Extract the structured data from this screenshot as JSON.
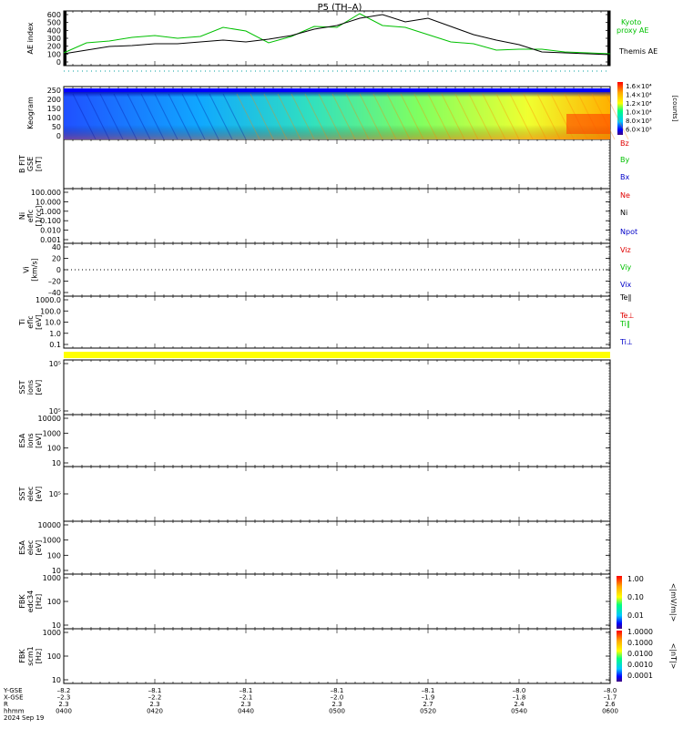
{
  "title": "P5  (TH–A)",
  "colors": {
    "kyoto": "#00c000",
    "themis": "#000000",
    "red": "#e00000",
    "green": "#00c000",
    "blue": "#0000c8",
    "highlight": "#ffff00"
  },
  "chart_data": [
    {
      "type": "line",
      "panel": "ae",
      "ylabel": "AE index",
      "ylim": [
        0,
        600
      ],
      "yticks": [
        "600",
        "500",
        "400",
        "300",
        "200",
        "100",
        "0"
      ],
      "x": [
        0,
        5,
        10,
        15,
        20,
        25,
        30,
        35,
        40,
        45,
        50,
        55,
        60,
        65,
        70,
        75,
        80,
        85,
        90,
        95,
        100,
        105,
        110,
        115,
        120
      ],
      "series": [
        {
          "name": "Kyoto\nproxy AE",
          "color": "#00c000",
          "values": [
            140,
            250,
            270,
            310,
            330,
            300,
            320,
            420,
            380,
            250,
            320,
            430,
            420,
            570,
            440,
            420,
            340,
            260,
            240,
            170,
            180,
            180,
            150,
            140,
            130
          ]
        },
        {
          "name": "Themis AE",
          "color": "#000000",
          "values": [
            130,
            170,
            210,
            220,
            240,
            240,
            260,
            280,
            260,
            290,
            330,
            400,
            440,
            520,
            560,
            480,
            520,
            430,
            340,
            280,
            230,
            150,
            140,
            130,
            120
          ]
        }
      ]
    },
    {
      "type": "heatmap",
      "panel": "keogram",
      "ylabel": "Keogram",
      "ylim": [
        0,
        250
      ],
      "yticks": [
        "250",
        "200",
        "150",
        "100",
        "50",
        "0"
      ],
      "colorbar": {
        "ticks": [
          "1.6×10⁴",
          "1.4×10⁴",
          "1.2×10⁴",
          "1.0×10⁴",
          "8.0×10³",
          "6.0×10³"
        ],
        "label": "[counts]"
      }
    },
    {
      "type": "line",
      "panel": "bfit",
      "ylabel": "B FIT\nGSE\n[nT]",
      "legend": [
        "Bz",
        "By",
        "Bx"
      ]
    },
    {
      "type": "line",
      "panel": "ni",
      "ylabel": "Ni\neflc\n[1/cc]",
      "ylim": [
        0.001,
        100
      ],
      "yticks": [
        "100.000",
        "10.000",
        "1.000",
        "0.100",
        "0.010",
        "0.001"
      ],
      "legend": [
        "Ne",
        "Ni",
        "Npot"
      ]
    },
    {
      "type": "line",
      "panel": "vi",
      "ylabel": "Vi\n[km/s]",
      "ylim": [
        -50,
        50
      ],
      "yticks": [
        "40",
        "20",
        "0",
        "–20",
        "–40"
      ],
      "legend": [
        "Viz",
        "Viy",
        "Vix"
      ]
    },
    {
      "type": "line",
      "panel": "ti",
      "ylabel": "Ti\neflc\n[eV]",
      "ylim": [
        0.1,
        1000
      ],
      "yticks": [
        "1000.0",
        "100.0",
        "10.0",
        "1.0",
        "0.1"
      ],
      "legend": [
        "Te∥",
        "Te⊥",
        "Ti∥",
        "Ti⊥"
      ]
    },
    {
      "type": "heatmap",
      "panel": "sst1",
      "ylabel": "SST\nions\n[eV]",
      "yticks": [
        "10⁵",
        "10⁵"
      ]
    },
    {
      "type": "heatmap",
      "panel": "esa1",
      "ylabel": "ESA\nions\n[eV]",
      "yticks": [
        "10000",
        "1000",
        "100",
        "10"
      ]
    },
    {
      "type": "heatmap",
      "panel": "sst2",
      "ylabel": "SST\nelec\n[eV]",
      "yticks": [
        "10⁵"
      ]
    },
    {
      "type": "heatmap",
      "panel": "esa2",
      "ylabel": "ESA\nelec\n[eV]",
      "yticks": [
        "10000",
        "1000",
        "100",
        "10"
      ]
    },
    {
      "type": "heatmap",
      "panel": "fbk1",
      "ylabel": "FBK\nedc34\n[Hz]",
      "yticks": [
        "1000",
        "100",
        "10"
      ],
      "colorbar": {
        "ticks": [
          "1.00",
          "0.10",
          "0.01"
        ],
        "label": "<|mV/m|>"
      }
    },
    {
      "type": "heatmap",
      "panel": "fbk2",
      "ylabel": "FBK\nscm1\n[Hz]",
      "yticks": [
        "1000",
        "100",
        "10"
      ],
      "colorbar": {
        "ticks": [
          "1.0000",
          "0.1000",
          "0.0100",
          "0.0010",
          "0.0001"
        ],
        "label": "<|nT|>"
      }
    }
  ],
  "rowlabels": [
    "Y-GSE",
    "X-GSE",
    "R",
    "hhmm",
    "2024 Sep 19"
  ],
  "xticks": [
    {
      "rows": [
        "–8.2",
        "–2.3",
        "2.3",
        "0400"
      ]
    },
    {
      "rows": [
        "–8.1",
        "–2.2",
        "2.3",
        "0420"
      ]
    },
    {
      "rows": [
        "–8.1",
        "–2.1",
        "2.3",
        "0440"
      ]
    },
    {
      "rows": [
        "–8.1",
        "–2.0",
        "2.3",
        "0500"
      ]
    },
    {
      "rows": [
        "–8.1",
        "–1.9",
        "2.7",
        "0520"
      ]
    },
    {
      "rows": [
        "–8.0",
        "–1.8",
        "2.4",
        "0540"
      ]
    },
    {
      "rows": [
        "–8.0",
        "–1.7",
        "2.6",
        "0600"
      ]
    }
  ]
}
